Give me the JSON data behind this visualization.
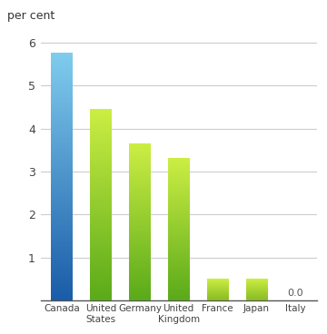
{
  "categories": [
    "Canada",
    "United\nStates",
    "Germany",
    "United\nKingdom",
    "France",
    "Japan",
    "Italy"
  ],
  "values": [
    5.75,
    4.45,
    3.65,
    3.3,
    0.5,
    0.5,
    0.0
  ],
  "canada_top": "#80ccee",
  "canada_bottom": "#1a5ca8",
  "green_top": "#ccee44",
  "green_bottom": "#5aaa1a",
  "france_japan_top": "#ccee44",
  "france_japan_bottom": "#88bb22",
  "ylim": [
    0,
    6.3
  ],
  "yticks": [
    0,
    1,
    2,
    3,
    4,
    5,
    6
  ],
  "ylabel": "per cent",
  "italy_label": "0.0",
  "background_color": "#ffffff",
  "plot_bg": "#ffffff",
  "grid_color": "#cccccc",
  "bar_width": 0.55
}
